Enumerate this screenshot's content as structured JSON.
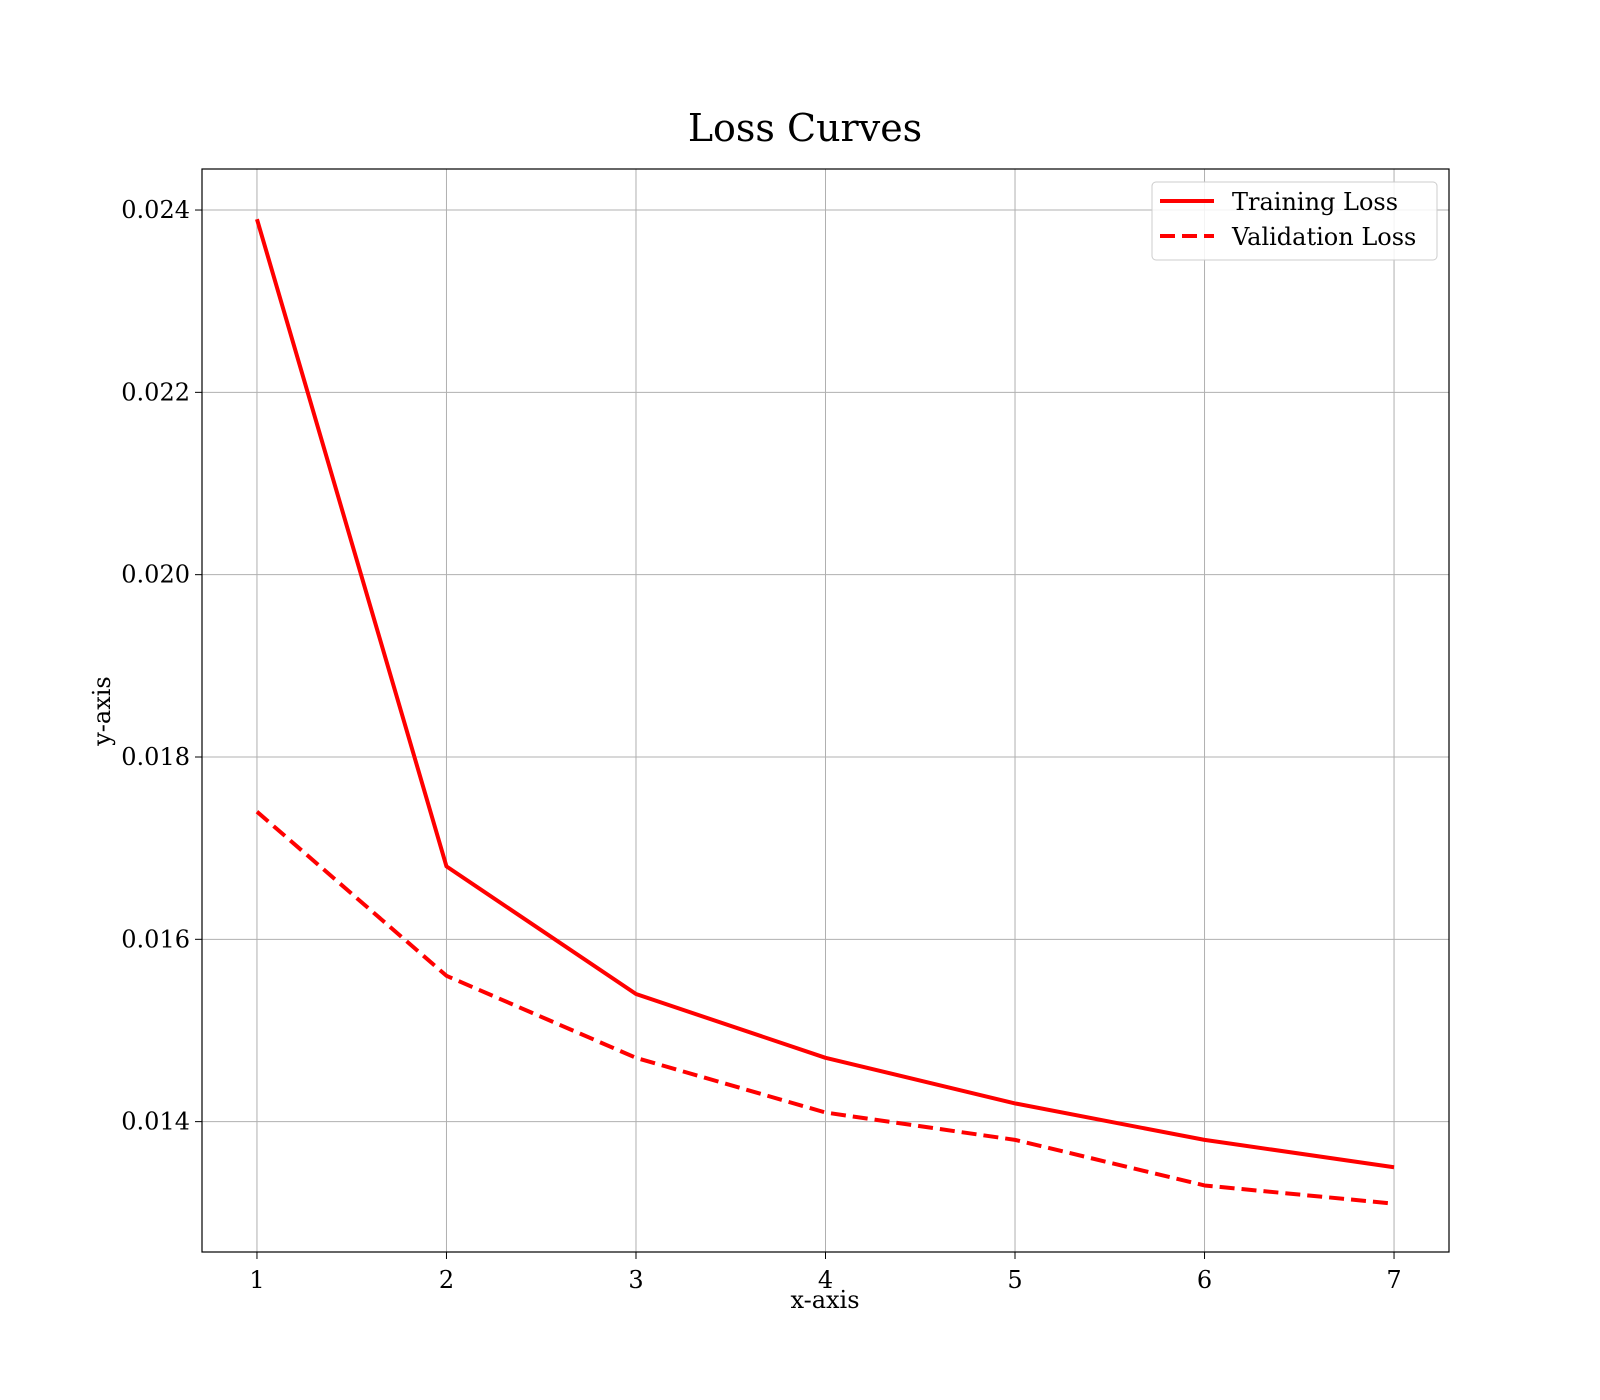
{
  "chart_data": {
    "type": "line",
    "title": "Loss Curves",
    "xlabel": "x-axis",
    "ylabel": "y-axis",
    "x": [
      1,
      2,
      3,
      4,
      5,
      6,
      7
    ],
    "xticks": [
      "1",
      "2",
      "3",
      "4",
      "5",
      "6",
      "7"
    ],
    "yticks": [
      "0.014",
      "0.016",
      "0.018",
      "0.020",
      "0.022",
      "0.024"
    ],
    "xlim": [
      0.71,
      7.29
    ],
    "ylim": [
      0.01257,
      0.02445
    ],
    "grid": true,
    "legend_position": "top-right",
    "series": [
      {
        "name": "Training Loss",
        "values": [
          0.0239,
          0.0168,
          0.0154,
          0.0147,
          0.0142,
          0.0138,
          0.0135
        ],
        "color": "#ff0000",
        "line_style": "solid"
      },
      {
        "name": "Validation Loss",
        "values": [
          0.0174,
          0.0156,
          0.0147,
          0.0141,
          0.0138,
          0.0133,
          0.0131
        ],
        "color": "#ff0000",
        "line_style": "dashed"
      }
    ]
  }
}
